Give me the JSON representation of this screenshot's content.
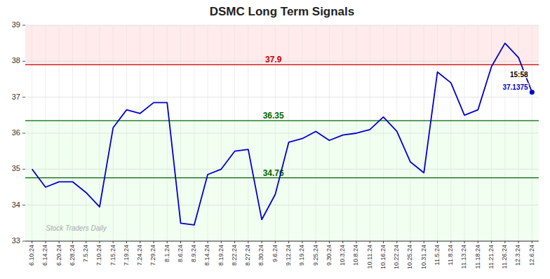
{
  "chart_data": {
    "type": "line",
    "title": "DSMC Long Term Signals",
    "categories": [
      "6.10.24",
      "6.14.24",
      "6.20.24",
      "6.28.24",
      "7.5.24",
      "7.10.24",
      "7.15.24",
      "7.19.24",
      "7.24.24",
      "7.29.24",
      "8.1.24",
      "8.6.24",
      "8.9.24",
      "8.14.24",
      "8.19.24",
      "8.22.24",
      "8.27.24",
      "8.30.24",
      "9.6.24",
      "9.12.24",
      "9.19.24",
      "9.25.24",
      "9.30.24",
      "10.3.24",
      "10.8.24",
      "10.11.24",
      "10.16.24",
      "10.22.24",
      "10.25.24",
      "10.31.24",
      "11.5.24",
      "11.8.24",
      "11.13.24",
      "11.18.24",
      "11.21.24",
      "11.26.24",
      "12.3.24",
      "12.6.24"
    ],
    "values": [
      35.0,
      34.5,
      34.65,
      34.65,
      34.35,
      33.95,
      36.15,
      36.65,
      36.55,
      36.85,
      36.85,
      33.5,
      33.45,
      34.85,
      35.0,
      35.5,
      35.55,
      33.6,
      34.3,
      35.75,
      35.85,
      36.05,
      35.8,
      35.95,
      36.0,
      36.1,
      36.45,
      36.05,
      35.2,
      34.9,
      37.7,
      37.4,
      36.5,
      36.65,
      37.85,
      38.5,
      38.1,
      37.1375
    ],
    "color": "#0000cc",
    "ylim": [
      33,
      39
    ],
    "yticks": [
      33,
      34,
      35,
      36,
      37,
      38,
      39
    ],
    "grid": true,
    "reference_lines": [
      {
        "value": 37.9,
        "label": "37.9",
        "color": "#cc0000"
      },
      {
        "value": 36.35,
        "label": "36.35",
        "color": "#006600"
      },
      {
        "value": 34.76,
        "label": "34.76",
        "color": "#006600"
      }
    ],
    "bands": [
      {
        "from": 37.9,
        "to": 39,
        "color": "#ffdddd"
      },
      {
        "from": 34.76,
        "to": 36.35,
        "color": "#ddffdd"
      },
      {
        "from": 33,
        "to": 34.76,
        "color": "#ddffdd"
      }
    ],
    "last_point": {
      "time": "15:58",
      "value": 37.1375,
      "label": "37.1375"
    },
    "watermark": "Stock Traders Daily"
  }
}
